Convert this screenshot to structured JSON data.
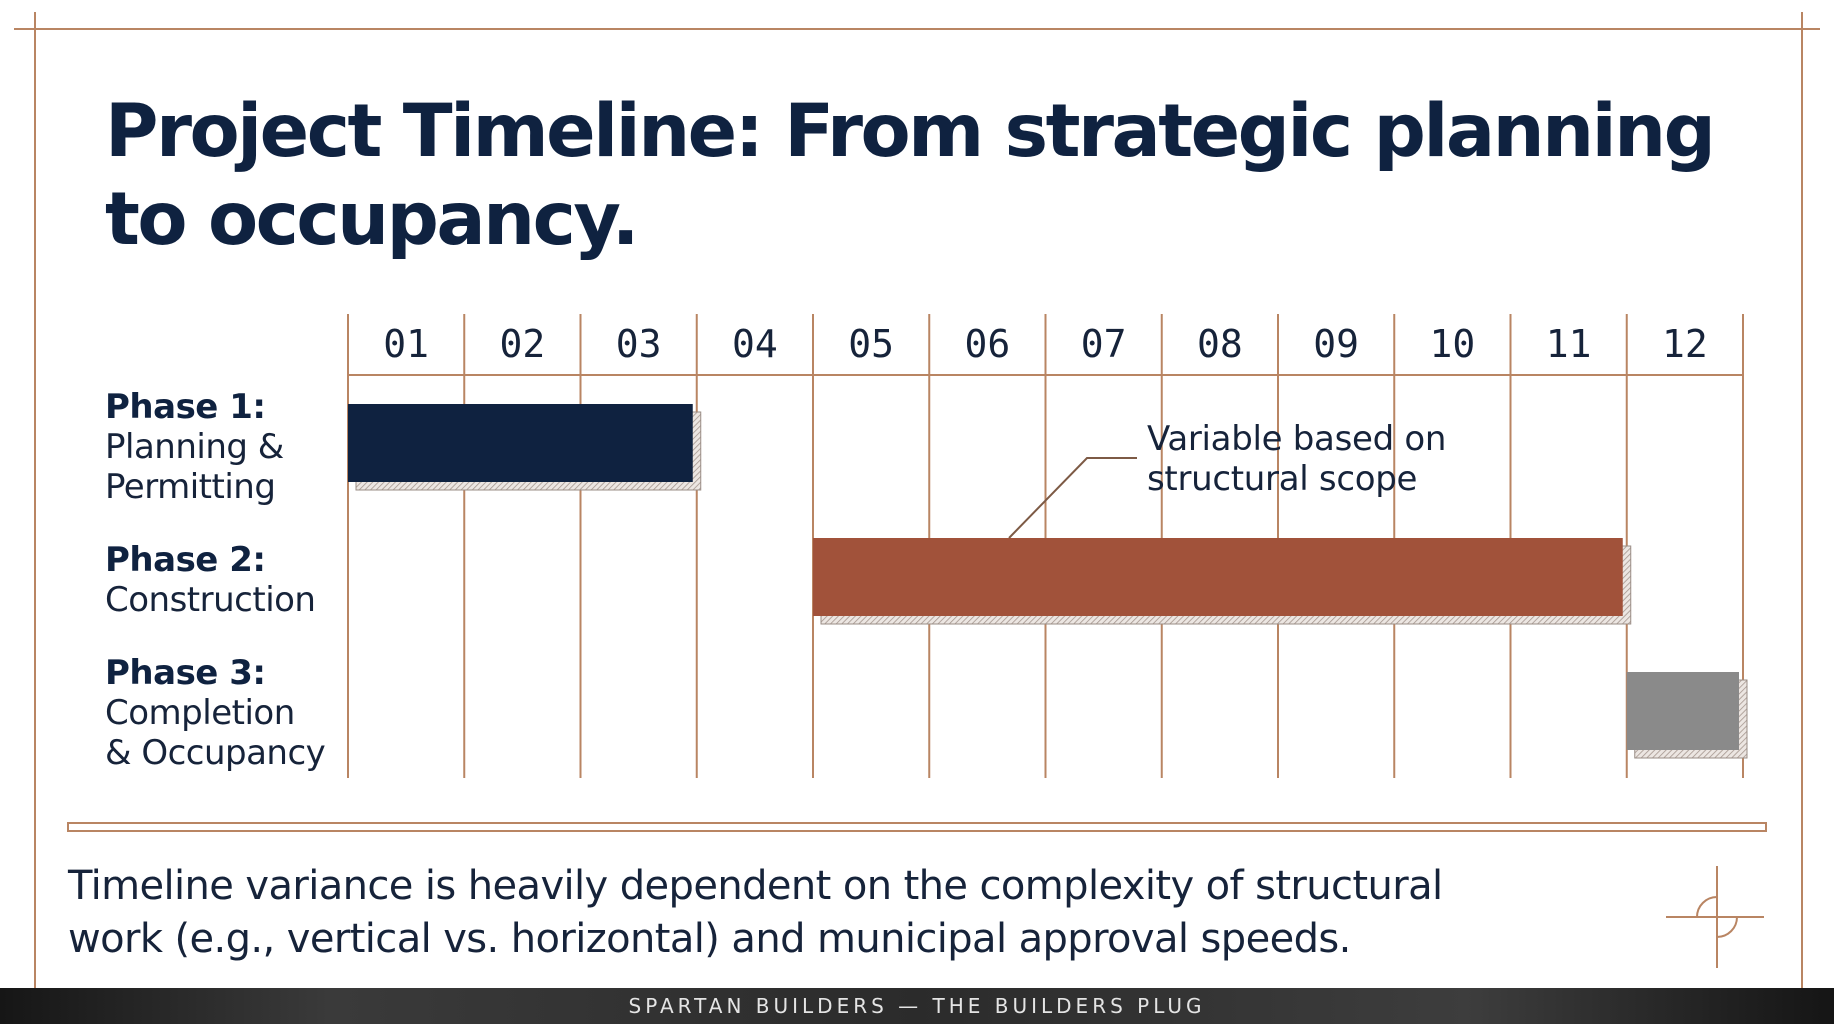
{
  "header": {
    "title_line1": "Project Timeline: From strategic planning",
    "title_line2": "to occupancy."
  },
  "chart_data": {
    "type": "gantt",
    "x_unit": "month",
    "categories": [
      "01",
      "02",
      "03",
      "04",
      "05",
      "06",
      "07",
      "08",
      "09",
      "10",
      "11",
      "12"
    ],
    "phases": [
      {
        "label_bold": "Phase 1:",
        "label_lines": [
          "Planning &",
          "Permitting"
        ],
        "start": 1,
        "end": 3,
        "color": "#0f2240"
      },
      {
        "label_bold": "Phase 2:",
        "label_lines": [
          "Construction"
        ],
        "start": 5,
        "end": 11,
        "color": "#a1523a"
      },
      {
        "label_bold": "Phase 3:",
        "label_lines": [
          "Completion",
          "& Occupancy"
        ],
        "start": 12,
        "end": 12,
        "color": "#8a8a8a"
      }
    ],
    "annotation": {
      "lines": [
        "Variable based on",
        "structural scope"
      ],
      "phase_index": 1
    },
    "grid": true,
    "legend": "none"
  },
  "note": {
    "line1": "Timeline variance is heavily dependent on the complexity of structural",
    "line2": "work (e.g., vertical vs. horizontal) and municipal approval speeds."
  },
  "footer": {
    "text": "SPARTAN BUILDERS — THE BUILDERS PLUG"
  },
  "colors": {
    "accent_line": "#b98563",
    "title": "#0f2240"
  }
}
